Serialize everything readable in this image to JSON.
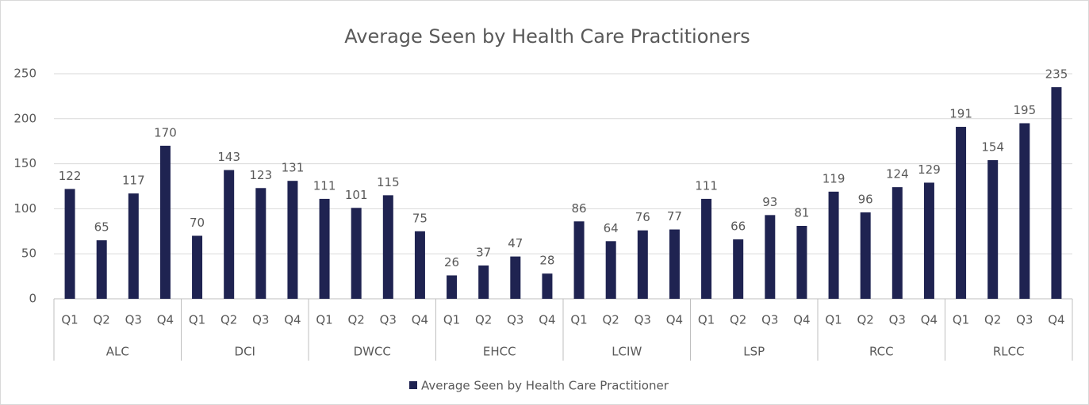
{
  "chart_data": {
    "type": "bar",
    "title": "Average Seen by Health Care Practitioners",
    "categories": [
      "Q1",
      "Q2",
      "Q3",
      "Q4",
      "Q1",
      "Q2",
      "Q3",
      "Q4",
      "Q1",
      "Q2",
      "Q3",
      "Q4",
      "Q1",
      "Q2",
      "Q3",
      "Q4",
      "Q1",
      "Q2",
      "Q3",
      "Q4",
      "Q1",
      "Q2",
      "Q3",
      "Q4",
      "Q1",
      "Q2",
      "Q3",
      "Q4",
      "Q1",
      "Q2",
      "Q3",
      "Q4"
    ],
    "groups": [
      "ALC",
      "DCI",
      "DWCC",
      "EHCC",
      "LCIW",
      "LSP",
      "RCC",
      "RLCC"
    ],
    "series": [
      {
        "name": "Average Seen by Health Care Practitioner",
        "color": "#1f2351",
        "values": [
          122,
          65,
          117,
          170,
          70,
          143,
          123,
          131,
          111,
          101,
          115,
          75,
          26,
          37,
          47,
          28,
          86,
          64,
          76,
          77,
          111,
          66,
          93,
          81,
          119,
          96,
          124,
          129,
          191,
          154,
          195,
          235
        ]
      }
    ],
    "ylim": [
      0,
      250
    ],
    "yticks": [
      0,
      50,
      100,
      150,
      200,
      250
    ],
    "grid": true,
    "legend": "bottom"
  }
}
